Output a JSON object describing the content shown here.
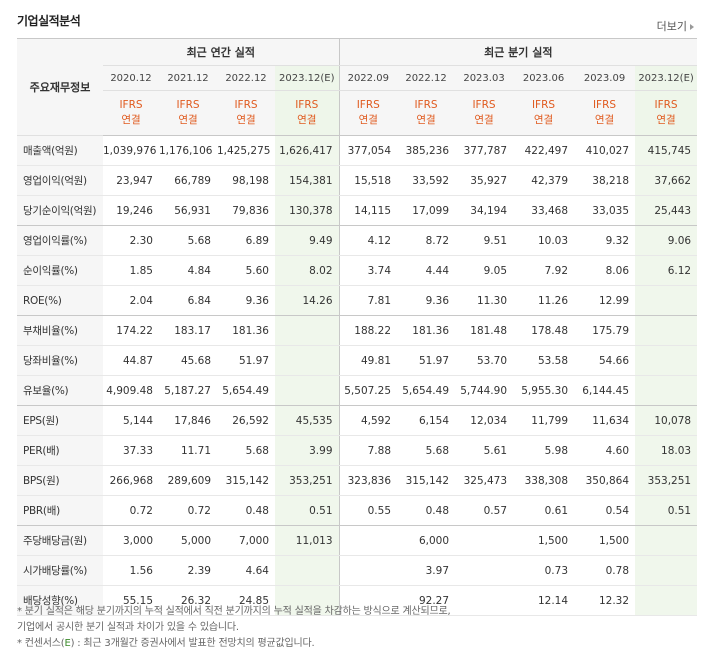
{
  "title": "기업실적분석",
  "more_label": "더보기",
  "header": {
    "corner": "주요재무정보",
    "annual_label": "최근 연간 실적",
    "quarter_label": "최근 분기 실적",
    "annual_periods": [
      "2020.12",
      "2021.12",
      "2022.12",
      "2023.12(E)"
    ],
    "quarter_periods": [
      "2022.09",
      "2022.12",
      "2023.03",
      "2023.06",
      "2023.09",
      "2023.12(E)"
    ],
    "basis_top": "IFRS",
    "basis_bottom": "연결"
  },
  "rows": [
    {
      "label": "매출액(억원)",
      "values": [
        "1,039,976",
        "1,176,106",
        "1,425,275",
        "1,626,417",
        "377,054",
        "385,236",
        "377,787",
        "422,497",
        "410,027",
        "415,745"
      ]
    },
    {
      "label": "영업이익(억원)",
      "values": [
        "23,947",
        "66,789",
        "98,198",
        "154,381",
        "15,518",
        "33,592",
        "35,927",
        "42,379",
        "38,218",
        "37,662"
      ]
    },
    {
      "label": "당기순이익(억원)",
      "values": [
        "19,246",
        "56,931",
        "79,836",
        "130,378",
        "14,115",
        "17,099",
        "34,194",
        "33,468",
        "33,035",
        "25,443"
      ]
    },
    {
      "label": "영업이익률(%)",
      "values": [
        "2.30",
        "5.68",
        "6.89",
        "9.49",
        "4.12",
        "8.72",
        "9.51",
        "10.03",
        "9.32",
        "9.06"
      ]
    },
    {
      "label": "순이익률(%)",
      "values": [
        "1.85",
        "4.84",
        "5.60",
        "8.02",
        "3.74",
        "4.44",
        "9.05",
        "7.92",
        "8.06",
        "6.12"
      ]
    },
    {
      "label": "ROE(%)",
      "values": [
        "2.04",
        "6.84",
        "9.36",
        "14.26",
        "7.81",
        "9.36",
        "11.30",
        "11.26",
        "12.99",
        ""
      ]
    },
    {
      "label": "부채비율(%)",
      "values": [
        "174.22",
        "183.17",
        "181.36",
        "",
        "188.22",
        "181.36",
        "181.48",
        "178.48",
        "175.79",
        ""
      ]
    },
    {
      "label": "당좌비율(%)",
      "values": [
        "44.87",
        "45.68",
        "51.97",
        "",
        "49.81",
        "51.97",
        "53.70",
        "53.58",
        "54.66",
        ""
      ]
    },
    {
      "label": "유보율(%)",
      "values": [
        "4,909.48",
        "5,187.27",
        "5,654.49",
        "",
        "5,507.25",
        "5,654.49",
        "5,744.90",
        "5,955.30",
        "6,144.45",
        ""
      ]
    },
    {
      "label": "EPS(원)",
      "values": [
        "5,144",
        "17,846",
        "26,592",
        "45,535",
        "4,592",
        "6,154",
        "12,034",
        "11,799",
        "11,634",
        "10,078"
      ]
    },
    {
      "label": "PER(배)",
      "values": [
        "37.33",
        "11.71",
        "5.68",
        "3.99",
        "7.88",
        "5.68",
        "5.61",
        "5.98",
        "4.60",
        "18.03"
      ]
    },
    {
      "label": "BPS(원)",
      "values": [
        "266,968",
        "289,609",
        "315,142",
        "353,251",
        "323,836",
        "315,142",
        "325,473",
        "338,308",
        "350,864",
        "353,251"
      ]
    },
    {
      "label": "PBR(배)",
      "values": [
        "0.72",
        "0.72",
        "0.48",
        "0.51",
        "0.55",
        "0.48",
        "0.57",
        "0.61",
        "0.54",
        "0.51"
      ]
    },
    {
      "label": "주당배당금(원)",
      "values": [
        "3,000",
        "5,000",
        "7,000",
        "11,013",
        "",
        "6,000",
        "",
        "1,500",
        "1,500",
        ""
      ]
    },
    {
      "label": "시가배당률(%)",
      "values": [
        "1.56",
        "2.39",
        "4.64",
        "",
        "",
        "3.97",
        "",
        "0.73",
        "0.78",
        ""
      ]
    },
    {
      "label": "배당성향(%)",
      "values": [
        "55.15",
        "26.32",
        "24.85",
        "",
        "",
        "92.27",
        "",
        "12.14",
        "12.32",
        ""
      ]
    }
  ],
  "notes": {
    "line1": "* 분기 실적은 해당 분기까지의 누적 실적에서 직전 분기까지의 누적 실적을 차감하는 방식으로 계산되므로,",
    "line2": "  기업에서 공시한 분기 실적과 차이가 있을 수 있습니다.",
    "line3_prefix": "* 컨센서스(",
    "line3_e": "E",
    "line3_suffix": ") : 최근 3개월간 증권사에서 발표한 전망치의 평균값입니다."
  }
}
